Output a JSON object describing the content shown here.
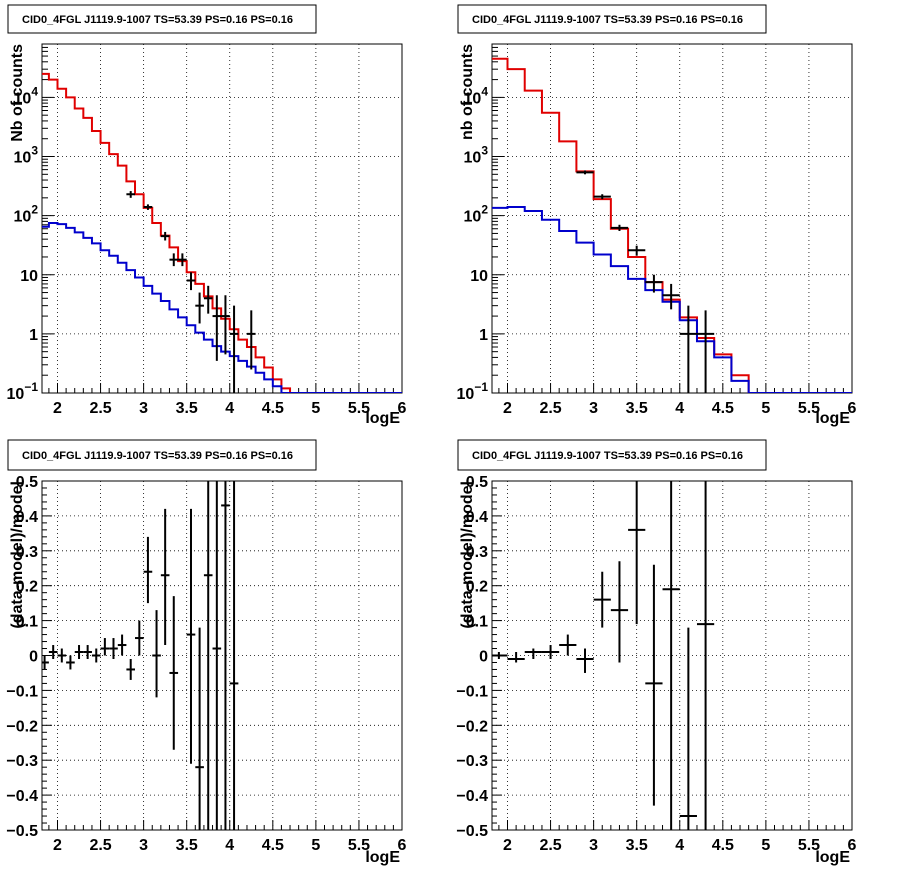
{
  "colors": {
    "data": "#000000",
    "total_model": "#e00000",
    "component": "#0000cc",
    "grid": "#000000"
  },
  "chart_data": [
    {
      "type": "line",
      "title": "CID0_4FGL J1119.9-1007 TS=53.39 PS=0.16 PS=0.16",
      "xlabel": "logE",
      "ylabel": "Nb of counts",
      "xlim": [
        1.82,
        6.0
      ],
      "ylim": [
        0.1,
        80000
      ],
      "yscale": "log",
      "grid": true,
      "xticks": [
        "2",
        "2.5",
        "3",
        "3.5",
        "4",
        "4.5",
        "5",
        "5.5",
        "6"
      ],
      "yticks": [
        {
          "v": 0.1,
          "base": "10",
          "exp": "−1"
        },
        {
          "v": 1,
          "text": "1"
        },
        {
          "v": 10,
          "text": "10"
        },
        {
          "v": 100,
          "base": "10",
          "exp": "2"
        },
        {
          "v": 1000,
          "base": "10",
          "exp": "3"
        },
        {
          "v": 10000,
          "base": "10",
          "exp": "4"
        }
      ],
      "series": [
        {
          "role": "total_model",
          "edges": [
            1.82,
            1.9,
            2.0,
            2.1,
            2.2,
            2.3,
            2.4,
            2.5,
            2.6,
            2.7,
            2.8,
            2.9,
            3.0,
            3.1,
            3.2,
            3.3,
            3.4,
            3.5,
            3.6,
            3.7,
            3.8,
            3.9,
            4.0,
            4.1,
            4.2,
            4.3,
            4.4,
            4.5,
            4.6,
            4.7,
            4.8,
            4.9,
            5.0,
            5.1,
            5.2,
            5.3,
            5.4,
            5.5,
            5.6,
            5.7,
            5.8,
            5.9,
            6.0
          ],
          "values": [
            25000,
            20000,
            14000,
            10000,
            6500,
            4500,
            2700,
            1700,
            1100,
            700,
            380,
            230,
            135,
            75,
            46,
            29,
            17,
            11,
            7,
            4.3,
            2.7,
            1.8,
            1.2,
            0.8,
            0.6,
            0.4,
            0.27,
            0.17,
            0.12,
            0.1,
            0.1,
            0.1,
            0.1,
            0.1,
            0.1,
            0.1,
            0.1,
            0.1,
            0.1,
            0.1,
            0.1,
            0.1
          ]
        },
        {
          "role": "component",
          "edges": [
            1.82,
            1.9,
            2.0,
            2.1,
            2.2,
            2.3,
            2.4,
            2.5,
            2.6,
            2.7,
            2.8,
            2.9,
            3.0,
            3.1,
            3.2,
            3.3,
            3.4,
            3.5,
            3.6,
            3.7,
            3.8,
            3.9,
            4.0,
            4.1,
            4.2,
            4.3,
            4.4,
            4.5,
            4.6,
            4.7,
            4.8,
            4.9,
            5.0,
            5.1,
            5.2,
            5.3,
            5.4,
            5.5,
            5.6,
            5.7,
            5.8,
            5.9,
            6.0
          ],
          "values": [
            65,
            75,
            72,
            62,
            52,
            42,
            34,
            26,
            21,
            16,
            12,
            9,
            6.5,
            4.8,
            3.6,
            2.6,
            1.9,
            1.4,
            1.05,
            0.8,
            0.62,
            0.5,
            0.42,
            0.35,
            0.28,
            0.22,
            0.17,
            0.13,
            0.1,
            0.1,
            0.1,
            0.1,
            0.1,
            0.1,
            0.1,
            0.1,
            0.1,
            0.1,
            0.1,
            0.1,
            0.1,
            0.1
          ]
        },
        {
          "role": "data",
          "points": [
            {
              "x": 2.85,
              "y": 230,
              "xerr": 0.05,
              "lo": 200,
              "hi": 260
            },
            {
              "x": 3.05,
              "y": 140,
              "xerr": 0.05,
              "lo": 125,
              "hi": 155
            },
            {
              "x": 3.25,
              "y": 45,
              "xerr": 0.05,
              "lo": 38,
              "hi": 53
            },
            {
              "x": 3.35,
              "y": 18,
              "xerr": 0.05,
              "lo": 14,
              "hi": 23
            },
            {
              "x": 3.45,
              "y": 18,
              "xerr": 0.05,
              "lo": 14,
              "hi": 23
            },
            {
              "x": 3.55,
              "y": 8,
              "xerr": 0.05,
              "lo": 5.5,
              "hi": 11
            },
            {
              "x": 3.65,
              "y": 3,
              "xerr": 0.05,
              "lo": 1.5,
              "hi": 5
            },
            {
              "x": 3.75,
              "y": 4,
              "xerr": 0.05,
              "lo": 2.2,
              "hi": 6.5
            },
            {
              "x": 3.85,
              "y": 2,
              "xerr": 0.05,
              "lo": 0.35,
              "hi": 4.5
            },
            {
              "x": 3.95,
              "y": 2,
              "xerr": 0.05,
              "lo": 0.45,
              "hi": 4.5
            },
            {
              "x": 4.05,
              "y": 1,
              "xerr": 0.05,
              "lo": 0.1,
              "hi": 3
            },
            {
              "x": 4.25,
              "y": 1,
              "xerr": 0.05,
              "lo": 0.25,
              "hi": 2.5
            }
          ]
        }
      ]
    },
    {
      "type": "line",
      "title": "CID0_4FGL J1119.9-1007 TS=53.39 PS=0.16 PS=0.16",
      "xlabel": "logE",
      "ylabel": "nb of counts",
      "xlim": [
        1.82,
        6.0
      ],
      "ylim": [
        0.1,
        80000
      ],
      "yscale": "log",
      "grid": true,
      "xticks": [
        "2",
        "2.5",
        "3",
        "3.5",
        "4",
        "4.5",
        "5",
        "5.5",
        "6"
      ],
      "yticks": [
        {
          "v": 0.1,
          "base": "10",
          "exp": "−1"
        },
        {
          "v": 1,
          "text": "1"
        },
        {
          "v": 10,
          "text": "10"
        },
        {
          "v": 100,
          "base": "10",
          "exp": "2"
        },
        {
          "v": 1000,
          "base": "10",
          "exp": "3"
        },
        {
          "v": 10000,
          "base": "10",
          "exp": "4"
        }
      ],
      "series": [
        {
          "role": "total_model",
          "edges": [
            1.82,
            2.0,
            2.2,
            2.4,
            2.6,
            2.8,
            3.0,
            3.2,
            3.4,
            3.6,
            3.8,
            4.0,
            4.2,
            4.4,
            4.6,
            4.8,
            5.0,
            5.2,
            5.4,
            5.6,
            5.8,
            6.0
          ],
          "values": [
            45000,
            30000,
            13000,
            5500,
            1800,
            560,
            190,
            60,
            20,
            7.5,
            3.8,
            1.9,
            0.85,
            0.45,
            0.2,
            0.1,
            0.1,
            0.1,
            0.1,
            0.1,
            0.1
          ]
        },
        {
          "role": "component",
          "edges": [
            1.82,
            2.0,
            2.2,
            2.4,
            2.6,
            2.8,
            3.0,
            3.2,
            3.4,
            3.6,
            3.8,
            4.0,
            4.2,
            4.4,
            4.6,
            4.8,
            5.0,
            5.2,
            5.4,
            5.6,
            5.8,
            6.0
          ],
          "values": [
            135,
            140,
            120,
            85,
            55,
            35,
            22,
            14,
            8.5,
            5.5,
            3.5,
            1.7,
            0.75,
            0.4,
            0.16,
            0.1,
            0.1,
            0.1,
            0.1,
            0.1,
            0.1
          ]
        },
        {
          "role": "data",
          "points": [
            {
              "x": 2.9,
              "y": 540,
              "xerr": 0.1,
              "lo": 500,
              "hi": 580
            },
            {
              "x": 3.1,
              "y": 210,
              "xerr": 0.1,
              "lo": 190,
              "hi": 230
            },
            {
              "x": 3.3,
              "y": 62,
              "xerr": 0.1,
              "lo": 55,
              "hi": 70
            },
            {
              "x": 3.5,
              "y": 26,
              "xerr": 0.1,
              "lo": 21,
              "hi": 31
            },
            {
              "x": 3.7,
              "y": 7.5,
              "xerr": 0.1,
              "lo": 5,
              "hi": 10
            },
            {
              "x": 3.9,
              "y": 4.5,
              "xerr": 0.1,
              "lo": 2.6,
              "hi": 7
            },
            {
              "x": 4.1,
              "y": 1,
              "xerr": 0.1,
              "lo": 0.1,
              "hi": 3
            },
            {
              "x": 4.3,
              "y": 1,
              "xerr": 0.1,
              "lo": 0.1,
              "hi": 2.5
            }
          ]
        }
      ]
    },
    {
      "type": "scatter",
      "title": "CID0_4FGL J1119.9-1007 TS=53.39 PS=0.16 PS=0.16",
      "xlabel": "logE",
      "ylabel": "(data-model)/model",
      "xlim": [
        1.82,
        6.0
      ],
      "ylim": [
        -0.5,
        0.5
      ],
      "yscale": "linear",
      "grid": true,
      "xticks": [
        "2",
        "2.5",
        "3",
        "3.5",
        "4",
        "4.5",
        "5",
        "5.5",
        "6"
      ],
      "yticks": [
        {
          "v": -0.5,
          "text": "−0.5"
        },
        {
          "v": -0.4,
          "text": "−0.4"
        },
        {
          "v": -0.3,
          "text": "−0.3"
        },
        {
          "v": -0.2,
          "text": "−0.2"
        },
        {
          "v": -0.1,
          "text": "−0.1"
        },
        {
          "v": 0,
          "text": "0"
        },
        {
          "v": 0.1,
          "text": "0.1"
        },
        {
          "v": 0.2,
          "text": "0.2"
        },
        {
          "v": 0.3,
          "text": "0.3"
        },
        {
          "v": 0.4,
          "text": "0.4"
        },
        {
          "v": 0.5,
          "text": "0.5"
        }
      ],
      "series": [
        {
          "role": "data",
          "points": [
            {
              "x": 1.85,
              "y": -0.02,
              "xerr": 0.05,
              "lo": -0.04,
              "hi": 0.0
            },
            {
              "x": 1.95,
              "y": 0.01,
              "xerr": 0.05,
              "lo": -0.01,
              "hi": 0.03
            },
            {
              "x": 2.05,
              "y": 0.0,
              "xerr": 0.05,
              "lo": -0.02,
              "hi": 0.02
            },
            {
              "x": 2.15,
              "y": -0.02,
              "xerr": 0.05,
              "lo": -0.04,
              "hi": 0.0
            },
            {
              "x": 2.25,
              "y": 0.01,
              "xerr": 0.05,
              "lo": -0.01,
              "hi": 0.03
            },
            {
              "x": 2.35,
              "y": 0.01,
              "xerr": 0.05,
              "lo": -0.01,
              "hi": 0.03
            },
            {
              "x": 2.45,
              "y": 0.0,
              "xerr": 0.05,
              "lo": -0.02,
              "hi": 0.02
            },
            {
              "x": 2.55,
              "y": 0.02,
              "xerr": 0.05,
              "lo": 0.0,
              "hi": 0.05
            },
            {
              "x": 2.65,
              "y": 0.02,
              "xerr": 0.05,
              "lo": -0.01,
              "hi": 0.05
            },
            {
              "x": 2.75,
              "y": 0.03,
              "xerr": 0.05,
              "lo": 0.0,
              "hi": 0.06
            },
            {
              "x": 2.85,
              "y": -0.04,
              "xerr": 0.05,
              "lo": -0.07,
              "hi": -0.01
            },
            {
              "x": 2.95,
              "y": 0.05,
              "xerr": 0.05,
              "lo": 0.0,
              "hi": 0.1
            },
            {
              "x": 3.05,
              "y": 0.24,
              "xerr": 0.05,
              "lo": 0.15,
              "hi": 0.34
            },
            {
              "x": 3.15,
              "y": 0.0,
              "xerr": 0.05,
              "lo": -0.12,
              "hi": 0.13
            },
            {
              "x": 3.25,
              "y": 0.23,
              "xerr": 0.05,
              "lo": 0.03,
              "hi": 0.42
            },
            {
              "x": 3.35,
              "y": -0.05,
              "xerr": 0.05,
              "lo": -0.27,
              "hi": 0.17
            },
            {
              "x": 3.55,
              "y": 0.06,
              "xerr": 0.05,
              "lo": -0.31,
              "hi": 0.42
            },
            {
              "x": 3.65,
              "y": -0.32,
              "xerr": 0.05,
              "lo": -0.5,
              "hi": 0.08
            },
            {
              "x": 3.75,
              "y": 0.23,
              "xerr": 0.05,
              "lo": -0.5,
              "hi": 0.5
            },
            {
              "x": 3.85,
              "y": 0.02,
              "xerr": 0.05,
              "lo": -0.5,
              "hi": 0.5
            },
            {
              "x": 3.95,
              "y": 0.43,
              "xerr": 0.05,
              "lo": -0.5,
              "hi": 0.5
            },
            {
              "x": 4.05,
              "y": -0.08,
              "xerr": 0.05,
              "lo": -0.5,
              "hi": 0.5
            }
          ]
        }
      ]
    },
    {
      "type": "scatter",
      "title": "CID0_4FGL J1119.9-1007 TS=53.39 PS=0.16 PS=0.16",
      "xlabel": "logE",
      "ylabel": "(data-model)/model",
      "xlim": [
        1.82,
        6.0
      ],
      "ylim": [
        -0.5,
        0.5
      ],
      "yscale": "linear",
      "grid": true,
      "xticks": [
        "2",
        "2.5",
        "3",
        "3.5",
        "4",
        "4.5",
        "5",
        "5.5",
        "6"
      ],
      "yticks": [
        {
          "v": -0.5,
          "text": "−0.5"
        },
        {
          "v": -0.4,
          "text": "−0.4"
        },
        {
          "v": -0.3,
          "text": "−0.3"
        },
        {
          "v": -0.2,
          "text": "−0.2"
        },
        {
          "v": -0.1,
          "text": "−0.1"
        },
        {
          "v": 0,
          "text": "0"
        },
        {
          "v": 0.1,
          "text": "0.1"
        },
        {
          "v": 0.2,
          "text": "0.2"
        },
        {
          "v": 0.3,
          "text": "0.3"
        },
        {
          "v": 0.4,
          "text": "0.4"
        },
        {
          "v": 0.5,
          "text": "0.5"
        }
      ],
      "series": [
        {
          "role": "data",
          "points": [
            {
              "x": 1.9,
              "y": 0.0,
              "xerr": 0.1,
              "lo": -0.01,
              "hi": 0.01
            },
            {
              "x": 2.1,
              "y": -0.01,
              "xerr": 0.1,
              "lo": -0.02,
              "hi": 0.01
            },
            {
              "x": 2.3,
              "y": 0.01,
              "xerr": 0.1,
              "lo": -0.01,
              "hi": 0.02
            },
            {
              "x": 2.5,
              "y": 0.01,
              "xerr": 0.1,
              "lo": -0.01,
              "hi": 0.03
            },
            {
              "x": 2.7,
              "y": 0.03,
              "xerr": 0.1,
              "lo": 0.0,
              "hi": 0.06
            },
            {
              "x": 2.9,
              "y": -0.01,
              "xerr": 0.1,
              "lo": -0.05,
              "hi": 0.02
            },
            {
              "x": 3.1,
              "y": 0.16,
              "xerr": 0.1,
              "lo": 0.08,
              "hi": 0.24
            },
            {
              "x": 3.3,
              "y": 0.13,
              "xerr": 0.1,
              "lo": -0.02,
              "hi": 0.27
            },
            {
              "x": 3.5,
              "y": 0.36,
              "xerr": 0.1,
              "lo": 0.09,
              "hi": 0.5
            },
            {
              "x": 3.7,
              "y": -0.08,
              "xerr": 0.1,
              "lo": -0.43,
              "hi": 0.26
            },
            {
              "x": 3.9,
              "y": 0.19,
              "xerr": 0.1,
              "lo": -0.5,
              "hi": 0.5
            },
            {
              "x": 4.1,
              "y": -0.46,
              "xerr": 0.1,
              "lo": -0.5,
              "hi": 0.08
            },
            {
              "x": 4.3,
              "y": 0.09,
              "xerr": 0.1,
              "lo": -0.5,
              "hi": 0.5
            }
          ]
        }
      ]
    }
  ]
}
